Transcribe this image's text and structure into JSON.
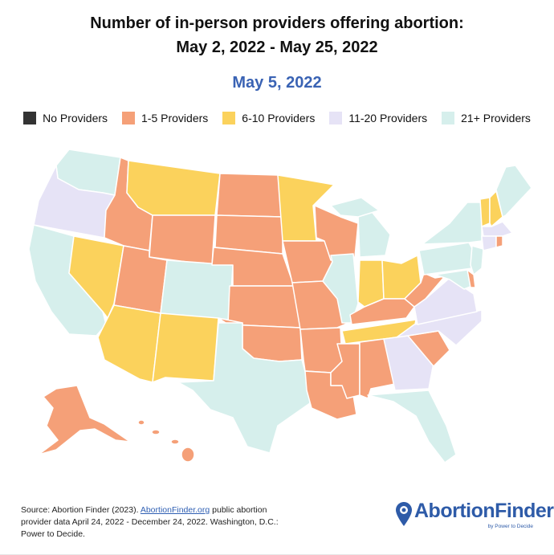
{
  "header": {
    "title_line1": "Number of in-person providers offering abortion:",
    "title_line2": "May 2, 2022 - May 25, 2022",
    "date": "May 5, 2022"
  },
  "legend": [
    {
      "label": "No Providers",
      "color": "#333333"
    },
    {
      "label": "1-5 Providers",
      "color": "#f5a078"
    },
    {
      "label": "6-10 Providers",
      "color": "#fbd25c"
    },
    {
      "label": "11-20 Providers",
      "color": "#e6e3f6"
    },
    {
      "label": "21+ Providers",
      "color": "#d6efec"
    }
  ],
  "map_data": {
    "states": {
      "WA": "21+ Providers",
      "OR": "11-20 Providers",
      "CA": "21+ Providers",
      "ID": "1-5 Providers",
      "NV": "6-10 Providers",
      "MT": "6-10 Providers",
      "WY": "1-5 Providers",
      "UT": "1-5 Providers",
      "AZ": "6-10 Providers",
      "CO": "21+ Providers",
      "NM": "6-10 Providers",
      "ND": "1-5 Providers",
      "SD": "1-5 Providers",
      "NE": "1-5 Providers",
      "KS": "1-5 Providers",
      "OK": "1-5 Providers",
      "TX": "21+ Providers",
      "MN": "6-10 Providers",
      "IA": "1-5 Providers",
      "MO": "1-5 Providers",
      "AR": "1-5 Providers",
      "LA": "1-5 Providers",
      "WI": "1-5 Providers",
      "IL": "21+ Providers",
      "MI": "21+ Providers",
      "IN": "6-10 Providers",
      "OH": "6-10 Providers",
      "KY": "1-5 Providers",
      "TN": "6-10 Providers",
      "MS": "1-5 Providers",
      "AL": "1-5 Providers",
      "GA": "11-20 Providers",
      "FL": "21+ Providers",
      "SC": "1-5 Providers",
      "NC": "11-20 Providers",
      "VA": "11-20 Providers",
      "WV": "1-5 Providers",
      "PA": "21+ Providers",
      "NY": "21+ Providers",
      "NJ": "21+ Providers",
      "DE": "1-5 Providers",
      "MD": "21+ Providers",
      "CT": "11-20 Providers",
      "RI": "1-5 Providers",
      "MA": "11-20 Providers",
      "VT": "6-10 Providers",
      "NH": "6-10 Providers",
      "ME": "21+ Providers",
      "AK": "1-5 Providers",
      "HI": "1-5 Providers"
    }
  },
  "footer": {
    "source_prefix": "Source: Abortion Finder (2023). ",
    "source_link": "AbortionFinder.org",
    "source_suffix": " public abortion provider data April 24, 2022 - December 24, 2022. Washington, D.C.: Power to Decide.",
    "logo_text": "AbortionFinder",
    "logo_sub": "by Power to Decide"
  }
}
